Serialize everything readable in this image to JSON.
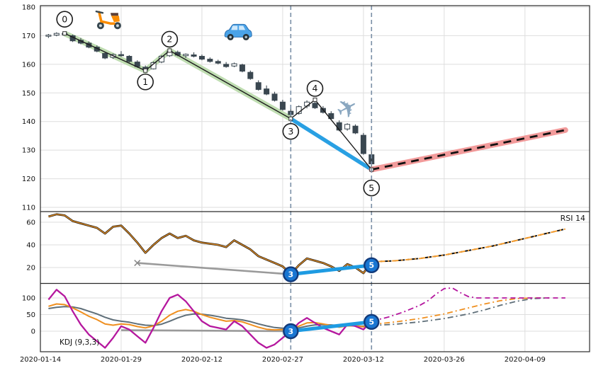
{
  "colors": {
    "grid": "#dedede",
    "border": "#2a2a2a",
    "candle_down": "#3a4750",
    "candle_up_fill": "#ffffff",
    "zigzag": "#1c1c1c",
    "zigzag_green": "#b8d9a9",
    "trend_blue": "#1e9be2",
    "forecast_red": "#f08a8a",
    "forecast_black": "#111111",
    "vline": "#7a8fa6",
    "gray_trend": "#9a9a9a",
    "rsi_black": "#1e1307",
    "rsi_orange": "#f59d2f",
    "kdj_k": "#ef8f1f",
    "kdj_d": "#5f6f79",
    "kdj_j": "#b5179e",
    "marker_fill": "#1976d2",
    "marker_border": "#123a7a",
    "text": "#111111"
  },
  "x_axis": {
    "ti_max": 68,
    "ticks": [
      {
        "ti": 0,
        "label": "2020-01-14"
      },
      {
        "ti": 10,
        "label": "2020-01-29"
      },
      {
        "ti": 20,
        "label": "2020-02-12"
      },
      {
        "ti": 30,
        "label": "2020-02-27"
      },
      {
        "ti": 40,
        "label": "2020-03-12"
      },
      {
        "ti": 50,
        "label": "2020-03-26"
      },
      {
        "ti": 60,
        "label": "2020-04-09"
      }
    ]
  },
  "panels": {
    "price": {
      "y_ticks": [
        180,
        170,
        160,
        150,
        140,
        130,
        120,
        110
      ]
    },
    "rsi": {
      "label": "RSI 14",
      "y_ticks": [
        60,
        40,
        20
      ]
    },
    "kdj": {
      "label": "KDJ (9,3,3)",
      "y_ticks": [
        100,
        50,
        0
      ]
    }
  },
  "chart_data": {
    "type": "candlestick",
    "candles": [
      {
        "d": "2020-01-15",
        "o": 169.8,
        "h": 170.6,
        "l": 169.2,
        "c": 170.2
      },
      {
        "d": "2020-01-16",
        "o": 170.2,
        "h": 171.2,
        "l": 169.8,
        "c": 170.8
      },
      {
        "d": "2020-01-17",
        "o": 170.8,
        "h": 171.4,
        "l": 170.0,
        "c": 170.4
      },
      {
        "d": "2020-01-21",
        "o": 170.0,
        "h": 170.4,
        "l": 167.8,
        "c": 168.2
      },
      {
        "d": "2020-01-22",
        "o": 168.4,
        "h": 169.2,
        "l": 167.0,
        "c": 167.4
      },
      {
        "d": "2020-01-23",
        "o": 167.4,
        "h": 168.0,
        "l": 165.6,
        "c": 166.0
      },
      {
        "d": "2020-01-24",
        "o": 166.0,
        "h": 166.6,
        "l": 164.2,
        "c": 164.6
      },
      {
        "d": "2020-01-27",
        "o": 163.8,
        "h": 164.4,
        "l": 161.8,
        "c": 162.2
      },
      {
        "d": "2020-01-28",
        "o": 162.4,
        "h": 163.8,
        "l": 161.9,
        "c": 163.4
      },
      {
        "d": "2020-01-29",
        "o": 163.4,
        "h": 164.6,
        "l": 162.6,
        "c": 163.0
      },
      {
        "d": "2020-01-30",
        "o": 162.8,
        "h": 163.2,
        "l": 160.6,
        "c": 161.0
      },
      {
        "d": "2020-01-31",
        "o": 160.8,
        "h": 161.4,
        "l": 158.8,
        "c": 159.2
      },
      {
        "d": "2020-02-03",
        "o": 159.0,
        "h": 159.6,
        "l": 157.6,
        "c": 158.0
      },
      {
        "d": "2020-02-04",
        "o": 158.4,
        "h": 161.0,
        "l": 158.2,
        "c": 160.6
      },
      {
        "d": "2020-02-05",
        "o": 160.8,
        "h": 163.2,
        "l": 160.4,
        "c": 162.8
      },
      {
        "d": "2020-02-06",
        "o": 163.0,
        "h": 165.0,
        "l": 162.6,
        "c": 164.6
      },
      {
        "d": "2020-02-07",
        "o": 164.2,
        "h": 164.8,
        "l": 162.8,
        "c": 163.2
      },
      {
        "d": "2020-02-10",
        "o": 163.0,
        "h": 163.8,
        "l": 162.2,
        "c": 163.5
      },
      {
        "d": "2020-02-11",
        "o": 163.3,
        "h": 164.2,
        "l": 162.4,
        "c": 162.8
      },
      {
        "d": "2020-02-12",
        "o": 162.8,
        "h": 163.4,
        "l": 161.4,
        "c": 161.8
      },
      {
        "d": "2020-02-13",
        "o": 161.8,
        "h": 162.4,
        "l": 160.6,
        "c": 161.0
      },
      {
        "d": "2020-02-14",
        "o": 161.0,
        "h": 161.6,
        "l": 160.0,
        "c": 160.4
      },
      {
        "d": "2020-02-18",
        "o": 160.0,
        "h": 160.8,
        "l": 158.8,
        "c": 159.2
      },
      {
        "d": "2020-02-19",
        "o": 159.4,
        "h": 160.6,
        "l": 159.0,
        "c": 160.2
      },
      {
        "d": "2020-02-20",
        "o": 159.8,
        "h": 160.2,
        "l": 157.2,
        "c": 157.6
      },
      {
        "d": "2020-02-21",
        "o": 157.2,
        "h": 157.8,
        "l": 154.6,
        "c": 155.0
      },
      {
        "d": "2020-02-24",
        "o": 153.6,
        "h": 154.4,
        "l": 150.8,
        "c": 151.2
      },
      {
        "d": "2020-02-25",
        "o": 151.4,
        "h": 152.6,
        "l": 149.2,
        "c": 149.6
      },
      {
        "d": "2020-02-26",
        "o": 149.6,
        "h": 150.4,
        "l": 147.0,
        "c": 147.4
      },
      {
        "d": "2020-02-27",
        "o": 146.8,
        "h": 147.6,
        "l": 143.8,
        "c": 144.2
      },
      {
        "d": "2020-02-28",
        "o": 143.6,
        "h": 144.8,
        "l": 141.0,
        "c": 142.4
      },
      {
        "d": "2020-03-02",
        "o": 142.8,
        "h": 145.6,
        "l": 142.4,
        "c": 145.2
      },
      {
        "d": "2020-03-03",
        "o": 145.4,
        "h": 147.4,
        "l": 144.6,
        "c": 146.8
      },
      {
        "d": "2020-03-04",
        "o": 146.4,
        "h": 147.6,
        "l": 144.4,
        "c": 144.8
      },
      {
        "d": "2020-03-05",
        "o": 144.6,
        "h": 145.4,
        "l": 142.8,
        "c": 143.2
      },
      {
        "d": "2020-03-06",
        "o": 142.8,
        "h": 143.6,
        "l": 140.6,
        "c": 141.0
      },
      {
        "d": "2020-03-09",
        "o": 139.6,
        "h": 140.4,
        "l": 136.6,
        "c": 137.0
      },
      {
        "d": "2020-03-10",
        "o": 137.4,
        "h": 139.4,
        "l": 136.8,
        "c": 139.0
      },
      {
        "d": "2020-03-11",
        "o": 138.4,
        "h": 139.0,
        "l": 135.6,
        "c": 136.0
      },
      {
        "d": "2020-03-12",
        "o": 135.2,
        "h": 136.0,
        "l": 128.4,
        "c": 128.8
      },
      {
        "d": "2020-03-13",
        "o": 128.4,
        "h": 129.6,
        "l": 123.2,
        "c": 125.2
      }
    ],
    "zigzag_points": [
      {
        "n": "0",
        "ti": 3,
        "v": 170.8,
        "dy": -20
      },
      {
        "n": "1",
        "ti": 13,
        "v": 157.8,
        "dy": 16
      },
      {
        "n": "2",
        "ti": 16,
        "v": 164.8,
        "dy": -16
      },
      {
        "n": "3",
        "ti": 31,
        "v": 141.0,
        "dy": 18
      },
      {
        "n": "4",
        "ti": 34,
        "v": 147.6,
        "dy": -16
      },
      {
        "n": "5",
        "ti": 41,
        "v": 123.2,
        "dy": 26
      }
    ],
    "zigzag_path": [
      [
        3,
        170.8
      ],
      [
        13,
        157.8
      ],
      [
        16,
        164.8
      ],
      [
        31,
        141.0
      ],
      [
        34,
        147.6
      ],
      [
        41,
        123.2
      ]
    ],
    "green_path": [
      [
        3,
        170.8
      ],
      [
        13,
        157.8
      ],
      [
        16,
        164.8
      ],
      [
        31,
        141.0
      ]
    ],
    "blue_price": [
      [
        31,
        141.0
      ],
      [
        41,
        123.2
      ]
    ],
    "price_forecast": [
      [
        41,
        123.2
      ],
      [
        65,
        137.0
      ]
    ],
    "vlines_ti": [
      31,
      41
    ],
    "rsi": {
      "start_ti": 1,
      "values": [
        65,
        67,
        66,
        61,
        59,
        57,
        55,
        50,
        56,
        57,
        50,
        42,
        33,
        40,
        46,
        50,
        46,
        48,
        44,
        42,
        41,
        40,
        38,
        44,
        40,
        36,
        30,
        27,
        24,
        21,
        14,
        22,
        28,
        26,
        24,
        21,
        17,
        23,
        20,
        15,
        25
      ],
      "trend": [
        [
          12,
          24
        ],
        [
          31,
          14
        ]
      ],
      "blue": [
        [
          31,
          14
        ],
        [
          41,
          22
        ]
      ],
      "forecast": [
        [
          41,
          25
        ],
        [
          44,
          26
        ],
        [
          47,
          28
        ],
        [
          50,
          31
        ],
        [
          53,
          35
        ],
        [
          56,
          39
        ],
        [
          59,
          44
        ],
        [
          62,
          49
        ],
        [
          65,
          54
        ]
      ],
      "markers": [
        {
          "n": "3",
          "ti": 31,
          "v": 14
        },
        {
          "n": "5",
          "ti": 41,
          "v": 22
        }
      ]
    },
    "kdj": {
      "start_ti": 1,
      "k": [
        75,
        82,
        80,
        70,
        58,
        45,
        35,
        22,
        18,
        22,
        20,
        14,
        10,
        16,
        30,
        48,
        60,
        65,
        60,
        50,
        42,
        36,
        30,
        32,
        28,
        20,
        12,
        6,
        4,
        5,
        8,
        15,
        25,
        26,
        22,
        17,
        12,
        16,
        16,
        13,
        20
      ],
      "d": [
        68,
        72,
        74,
        73,
        68,
        60,
        52,
        42,
        34,
        30,
        27,
        22,
        18,
        17,
        21,
        30,
        40,
        48,
        52,
        51,
        48,
        44,
        39,
        37,
        34,
        29,
        22,
        16,
        11,
        9,
        8,
        10,
        15,
        19,
        20,
        19,
        17,
        16,
        16,
        15,
        17
      ],
      "j": [
        95,
        125,
        105,
        60,
        20,
        -10,
        -30,
        -50,
        -20,
        15,
        5,
        -15,
        -35,
        10,
        60,
        100,
        110,
        90,
        60,
        30,
        15,
        10,
        5,
        30,
        15,
        -10,
        -35,
        -50,
        -40,
        -20,
        0,
        25,
        40,
        25,
        10,
        0,
        -10,
        20,
        15,
        5,
        30
      ],
      "trend": [
        [
          10,
          3
        ],
        [
          31,
          0
        ]
      ],
      "blue": [
        [
          31,
          0
        ],
        [
          41,
          28
        ]
      ],
      "k_forecast": [
        [
          41,
          20
        ],
        [
          44,
          28
        ],
        [
          47,
          38
        ],
        [
          50,
          52
        ],
        [
          53,
          70
        ],
        [
          55,
          82
        ],
        [
          57,
          92
        ],
        [
          59,
          98
        ],
        [
          61,
          100
        ],
        [
          63,
          100
        ]
      ],
      "d_forecast": [
        [
          41,
          17
        ],
        [
          44,
          21
        ],
        [
          47,
          28
        ],
        [
          50,
          38
        ],
        [
          53,
          52
        ],
        [
          55,
          64
        ],
        [
          57,
          78
        ],
        [
          59,
          90
        ],
        [
          61,
          98
        ],
        [
          63,
          100
        ]
      ],
      "j_forecast": [
        [
          41,
          30
        ],
        [
          43,
          42
        ],
        [
          45,
          58
        ],
        [
          47,
          78
        ],
        [
          48,
          92
        ],
        [
          49,
          112
        ],
        [
          50,
          128
        ],
        [
          51,
          130
        ],
        [
          52,
          116
        ],
        [
          53,
          104
        ],
        [
          54,
          100
        ]
      ],
      "j_flat": [
        [
          54,
          100
        ],
        [
          65,
          100
        ]
      ],
      "markers": [
        {
          "n": "3",
          "ti": 31,
          "v": 0
        },
        {
          "n": "5",
          "ti": 41,
          "v": 28
        }
      ]
    },
    "icons": [
      {
        "name": "scooter",
        "ti": 8.5,
        "v": 176.0
      },
      {
        "name": "car",
        "ti": 24.5,
        "v": 171.5
      },
      {
        "name": "airplane",
        "ti": 38.0,
        "v": 144.5,
        "glyph": "✈"
      }
    ]
  }
}
